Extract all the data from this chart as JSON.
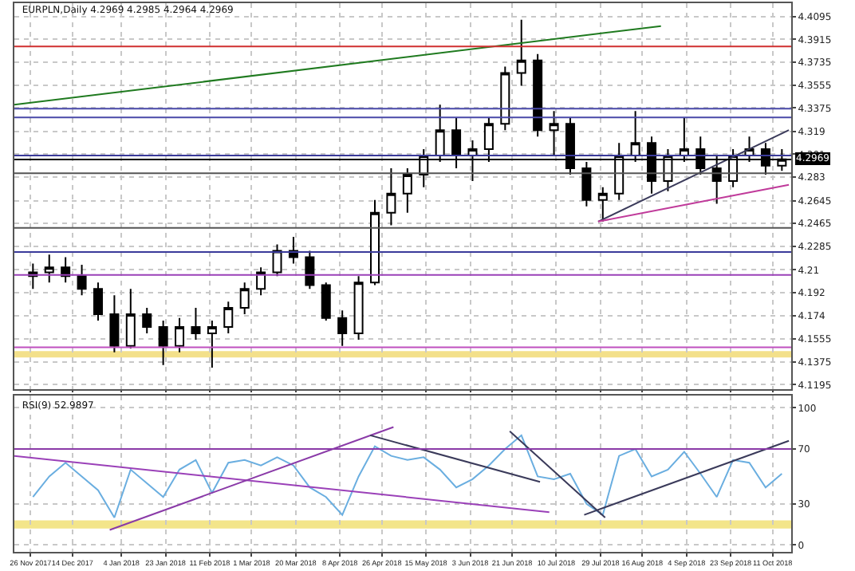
{
  "chart_data": [
    {
      "type": "candlestick",
      "title": "EURPLN,Daily 4.2969 4.2985 4.2964 4.2969",
      "color": "#000000",
      "grid": true,
      "tick_labels": "y",
      "xlim": [
        "2017-11-19",
        "2018-10-19"
      ],
      "ylim": [
        4.116,
        4.42
      ],
      "xticks": [
        {
          "value": "2017-11-26",
          "label": null
        },
        {
          "value": "2017-12-14",
          "label": null
        },
        {
          "value": "2018-01-04",
          "label": null
        },
        {
          "value": "2018-01-23",
          "label": null
        },
        {
          "value": "2018-02-11",
          "label": null
        },
        {
          "value": "2018-03-01",
          "label": null
        },
        {
          "value": "2018-03-20",
          "label": null
        },
        {
          "value": "2018-04-08",
          "label": null
        },
        {
          "value": "2018-04-26",
          "label": null
        },
        {
          "value": "2018-05-15",
          "label": null
        },
        {
          "value": "2018-06-03",
          "label": null
        },
        {
          "value": "2018-06-21",
          "label": null
        },
        {
          "value": "2018-07-10",
          "label": null
        },
        {
          "value": "2018-07-29",
          "label": null
        },
        {
          "value": "2018-08-16",
          "label": null
        },
        {
          "value": "2018-09-04",
          "label": null
        },
        {
          "value": "2018-09-23",
          "label": null
        },
        {
          "value": "2018-10-11",
          "label": null
        }
      ],
      "yticks": [
        4.4095,
        4.3915,
        4.3735,
        4.3555,
        4.3375,
        4.319,
        4.301,
        4.283,
        4.2645,
        4.2465,
        4.2285,
        4.21,
        4.192,
        4.174,
        4.1555,
        4.1375,
        4.1195
      ],
      "x": [
        "2017-11-27",
        "2017-12-04",
        "2017-12-11",
        "2017-12-18",
        "2017-12-25",
        "2018-01-01",
        "2018-01-08",
        "2018-01-15",
        "2018-01-22",
        "2018-01-29",
        "2018-02-05",
        "2018-02-12",
        "2018-02-19",
        "2018-02-26",
        "2018-03-05",
        "2018-03-12",
        "2018-03-19",
        "2018-03-26",
        "2018-04-02",
        "2018-04-09",
        "2018-04-16",
        "2018-04-23",
        "2018-04-30",
        "2018-05-07",
        "2018-05-14",
        "2018-05-21",
        "2018-05-28",
        "2018-06-04",
        "2018-06-11",
        "2018-06-18",
        "2018-06-25",
        "2018-07-02",
        "2018-07-09",
        "2018-07-16",
        "2018-07-23",
        "2018-07-30",
        "2018-08-06",
        "2018-08-13",
        "2018-08-20",
        "2018-08-27",
        "2018-09-03",
        "2018-09-10",
        "2018-09-17",
        "2018-09-24",
        "2018-10-01",
        "2018-10-08",
        "2018-10-15"
      ],
      "ohlc": [
        [
          4.205,
          4.215,
          4.195,
          4.208
        ],
        [
          4.208,
          4.222,
          4.2,
          4.212
        ],
        [
          4.212,
          4.22,
          4.2,
          4.205
        ],
        [
          4.205,
          4.214,
          4.19,
          4.195
        ],
        [
          4.195,
          4.2,
          4.17,
          4.175
        ],
        [
          4.175,
          4.19,
          4.145,
          4.15
        ],
        [
          4.15,
          4.195,
          4.148,
          4.175
        ],
        [
          4.175,
          4.18,
          4.16,
          4.165
        ],
        [
          4.165,
          4.17,
          4.135,
          4.15
        ],
        [
          4.15,
          4.172,
          4.145,
          4.165
        ],
        [
          4.165,
          4.18,
          4.155,
          4.16
        ],
        [
          4.16,
          4.17,
          4.133,
          4.165
        ],
        [
          4.165,
          4.185,
          4.16,
          4.18
        ],
        [
          4.18,
          4.2,
          4.175,
          4.195
        ],
        [
          4.195,
          4.212,
          4.19,
          4.208
        ],
        [
          4.208,
          4.23,
          4.205,
          4.225
        ],
        [
          4.225,
          4.236,
          4.215,
          4.22
        ],
        [
          4.22,
          4.225,
          4.195,
          4.198
        ],
        [
          4.198,
          4.2,
          4.17,
          4.172
        ],
        [
          4.172,
          4.178,
          4.15,
          4.16
        ],
        [
          4.16,
          4.205,
          4.155,
          4.2
        ],
        [
          4.2,
          4.265,
          4.198,
          4.255
        ],
        [
          4.255,
          4.29,
          4.245,
          4.27
        ],
        [
          4.27,
          4.29,
          4.255,
          4.285
        ],
        [
          4.285,
          4.305,
          4.275,
          4.3
        ],
        [
          4.3,
          4.34,
          4.295,
          4.32
        ],
        [
          4.32,
          4.33,
          4.29,
          4.3
        ],
        [
          4.3,
          4.312,
          4.28,
          4.305
        ],
        [
          4.305,
          4.33,
          4.295,
          4.325
        ],
        [
          4.325,
          4.37,
          4.32,
          4.365
        ],
        [
          4.365,
          4.407,
          4.355,
          4.375
        ],
        [
          4.375,
          4.38,
          4.315,
          4.32
        ],
        [
          4.32,
          4.335,
          4.3,
          4.325
        ],
        [
          4.325,
          4.33,
          4.285,
          4.29
        ],
        [
          4.29,
          4.295,
          4.26,
          4.265
        ],
        [
          4.265,
          4.275,
          4.248,
          4.27
        ],
        [
          4.27,
          4.31,
          4.265,
          4.3
        ],
        [
          4.3,
          4.335,
          4.295,
          4.31
        ],
        [
          4.31,
          4.315,
          4.27,
          4.28
        ],
        [
          4.28,
          4.305,
          4.272,
          4.3
        ],
        [
          4.3,
          4.33,
          4.295,
          4.305
        ],
        [
          4.305,
          4.315,
          4.285,
          4.29
        ],
        [
          4.29,
          4.3,
          4.262,
          4.28
        ],
        [
          4.28,
          4.305,
          4.275,
          4.3
        ],
        [
          4.3,
          4.315,
          4.295,
          4.305
        ],
        [
          4.305,
          4.31,
          4.285,
          4.292
        ],
        [
          4.292,
          4.305,
          4.288,
          4.297
        ]
      ],
      "ref_lines": [
        {
          "axis": "y",
          "value": 4.386,
          "color": "#d03030"
        },
        {
          "axis": "y",
          "value": 4.337,
          "color": "#4848a8"
        },
        {
          "axis": "y",
          "value": 4.33,
          "color": "#4848a8"
        },
        {
          "axis": "y",
          "value": 4.3,
          "color": "#3a3a9a"
        },
        {
          "axis": "y",
          "value": 4.286,
          "color": "#555555"
        },
        {
          "axis": "y",
          "value": 4.243,
          "color": "#555555"
        },
        {
          "axis": "y",
          "value": 4.224,
          "color": "#3a3a9a"
        },
        {
          "axis": "y",
          "value": 4.206,
          "color": "#9a40b8"
        },
        {
          "axis": "y",
          "value": 4.149,
          "color": "#c050c0"
        },
        {
          "axis": "y",
          "value": 4.2969,
          "label": "4.2969",
          "color": "#000000"
        }
      ],
      "bands": [
        {
          "axis": "y",
          "from": 4.141,
          "to": 4.146,
          "color": "#f3e08a"
        }
      ],
      "series": [
        {
          "type": "line",
          "color": "#1f7a1f",
          "x": [
            "2017-11-19",
            "2018-08-24"
          ],
          "values": [
            4.34,
            4.402
          ]
        },
        {
          "type": "line",
          "color": "#3a3a5a",
          "x": [
            "2018-07-28",
            "2018-10-18"
          ],
          "values": [
            4.248,
            4.32
          ]
        },
        {
          "type": "line",
          "color": "#c03a9a",
          "x": [
            "2018-07-28",
            "2018-10-18"
          ],
          "values": [
            4.248,
            4.277
          ]
        }
      ]
    },
    {
      "type": "line",
      "title": "RSI(9) 52.9897",
      "grid": true,
      "xlim": [
        "2017-11-19",
        "2018-10-19"
      ],
      "ylim": [
        -5,
        109
      ],
      "xticks": [
        {
          "value": "2017-11-26",
          "label": "26 Nov 2017"
        },
        {
          "value": "2017-12-14",
          "label": "14 Dec 2017"
        },
        {
          "value": "2018-01-04",
          "label": "4 Jan 2018"
        },
        {
          "value": "2018-01-23",
          "label": "23 Jan 2018"
        },
        {
          "value": "2018-02-11",
          "label": "11 Feb 2018"
        },
        {
          "value": "2018-03-01",
          "label": "1 Mar 2018"
        },
        {
          "value": "2018-03-20",
          "label": "20 Mar 2018"
        },
        {
          "value": "2018-04-08",
          "label": "8 Apr 2018"
        },
        {
          "value": "2018-04-26",
          "label": "26 Apr 2018"
        },
        {
          "value": "2018-05-15",
          "label": "15 May 2018"
        },
        {
          "value": "2018-06-03",
          "label": "3 Jun 2018"
        },
        {
          "value": "2018-06-21",
          "label": "21 Jun 2018"
        },
        {
          "value": "2018-07-10",
          "label": "10 Jul 2018"
        },
        {
          "value": "2018-07-29",
          "label": "29 Jul 2018"
        },
        {
          "value": "2018-08-16",
          "label": "16 Aug 2018"
        },
        {
          "value": "2018-09-04",
          "label": "4 Sep 2018"
        },
        {
          "value": "2018-09-23",
          "label": "23 Sep 2018"
        },
        {
          "value": "2018-10-11",
          "label": "11 Oct 2018"
        }
      ],
      "yticks": [
        0,
        30,
        70,
        100
      ],
      "ref_lines": [
        {
          "axis": "y",
          "value": 70,
          "color": "#8a3aa8"
        }
      ],
      "bands": [
        {
          "axis": "y",
          "from": 12,
          "to": 18,
          "color": "#f3e58a"
        }
      ],
      "series": [
        {
          "type": "line",
          "color": "#6aaee0",
          "x": [
            "2017-11-27",
            "2017-12-04",
            "2017-12-11",
            "2017-12-18",
            "2017-12-25",
            "2018-01-01",
            "2018-01-08",
            "2018-01-15",
            "2018-01-22",
            "2018-01-29",
            "2018-02-05",
            "2018-02-12",
            "2018-02-19",
            "2018-02-26",
            "2018-03-05",
            "2018-03-12",
            "2018-03-19",
            "2018-03-26",
            "2018-04-02",
            "2018-04-09",
            "2018-04-16",
            "2018-04-23",
            "2018-04-30",
            "2018-05-07",
            "2018-05-14",
            "2018-05-21",
            "2018-05-28",
            "2018-06-04",
            "2018-06-11",
            "2018-06-18",
            "2018-06-25",
            "2018-07-02",
            "2018-07-09",
            "2018-07-16",
            "2018-07-23",
            "2018-07-30",
            "2018-08-06",
            "2018-08-13",
            "2018-08-20",
            "2018-08-27",
            "2018-09-03",
            "2018-09-10",
            "2018-09-17",
            "2018-09-24",
            "2018-10-01",
            "2018-10-08",
            "2018-10-15"
          ],
          "values": [
            35,
            50,
            60,
            50,
            40,
            20,
            55,
            45,
            35,
            55,
            62,
            38,
            60,
            62,
            58,
            64,
            58,
            42,
            35,
            22,
            50,
            72,
            65,
            62,
            64,
            55,
            42,
            48,
            58,
            70,
            80,
            50,
            48,
            52,
            30,
            22,
            65,
            70,
            50,
            55,
            68,
            52,
            35,
            62,
            60,
            42,
            52
          ]
        },
        {
          "type": "line",
          "color": "#9a40b8",
          "x": [
            "2017-11-19",
            "2018-07-07"
          ],
          "values": [
            65,
            24
          ]
        },
        {
          "type": "line",
          "color": "#8a3aa8",
          "x": [
            "2017-12-30",
            "2018-05-01"
          ],
          "values": [
            11,
            86
          ]
        },
        {
          "type": "line",
          "color": "#3a3a5a",
          "x": [
            "2018-04-21",
            "2018-07-03"
          ],
          "values": [
            80,
            46
          ]
        },
        {
          "type": "line",
          "color": "#3a3a5a",
          "x": [
            "2018-06-20",
            "2018-07-31"
          ],
          "values": [
            83,
            20
          ]
        },
        {
          "type": "line",
          "color": "#3a3a5a",
          "x": [
            "2018-07-22",
            "2018-10-18"
          ],
          "values": [
            22,
            76
          ]
        }
      ]
    }
  ]
}
